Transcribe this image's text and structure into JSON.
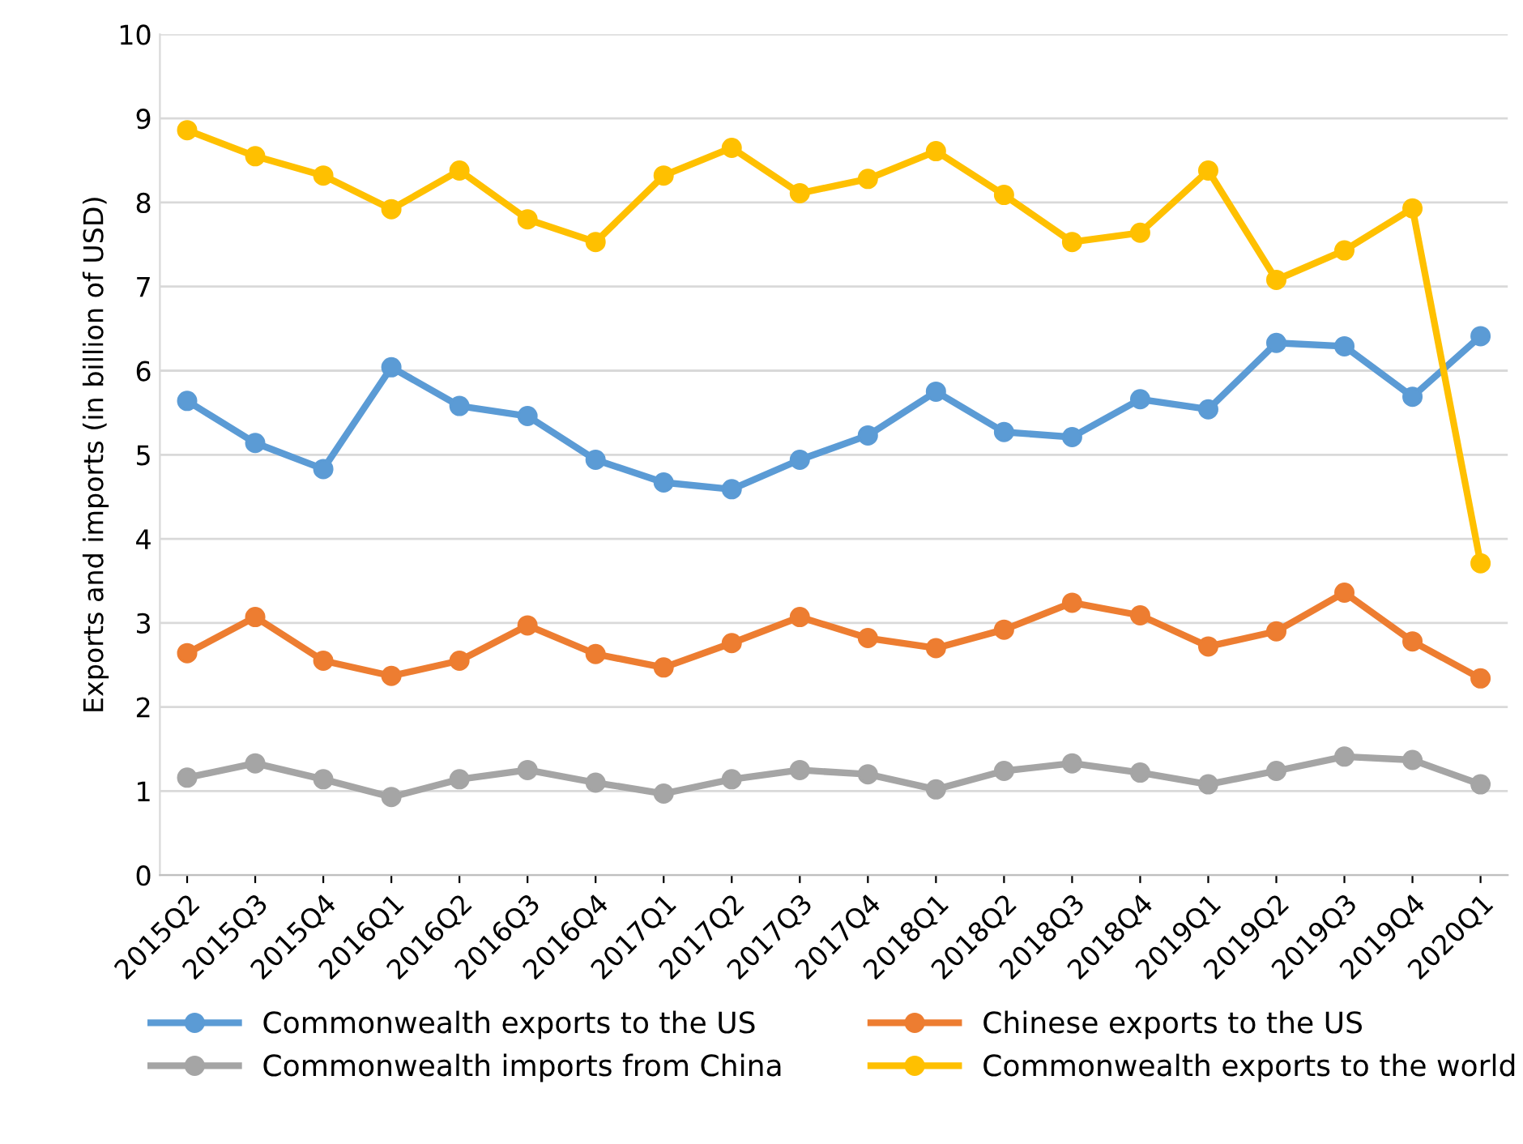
{
  "chart_data": {
    "type": "line",
    "ylabel": "Exports and imports (in billion of USD)",
    "categories": [
      "2015Q2",
      "2015Q3",
      "2015Q4",
      "2016Q1",
      "2016Q2",
      "2016Q3",
      "2016Q4",
      "2017Q1",
      "2017Q2",
      "2017Q3",
      "2017Q4",
      "2018Q1",
      "2018Q2",
      "2018Q3",
      "2018Q4",
      "2019Q1",
      "2019Q2",
      "2019Q3",
      "2019Q4",
      "2020Q1"
    ],
    "series": [
      {
        "name": "Commonwealth exports to the US",
        "color": "#5b9bd5",
        "values": [
          5.64,
          5.14,
          4.83,
          6.04,
          5.58,
          5.46,
          4.94,
          4.67,
          4.59,
          4.94,
          5.23,
          5.75,
          5.27,
          5.21,
          5.66,
          5.54,
          6.33,
          6.29,
          5.69,
          6.41
        ]
      },
      {
        "name": "Chinese exports to the US",
        "color": "#ed7d31",
        "values": [
          2.64,
          3.07,
          2.55,
          2.37,
          2.55,
          2.97,
          2.63,
          2.47,
          2.76,
          3.07,
          2.82,
          2.7,
          2.92,
          3.24,
          3.09,
          2.72,
          2.9,
          3.36,
          2.78,
          2.34
        ]
      },
      {
        "name": "Commonwealth imports from China",
        "color": "#a5a5a5",
        "values": [
          1.16,
          1.33,
          1.14,
          0.93,
          1.14,
          1.25,
          1.1,
          0.97,
          1.14,
          1.25,
          1.2,
          1.02,
          1.24,
          1.33,
          1.22,
          1.08,
          1.24,
          1.41,
          1.37,
          1.08
        ]
      },
      {
        "name": "Commonwealth exports to the world",
        "color": "#ffc000",
        "values": [
          8.86,
          8.55,
          8.32,
          7.92,
          8.38,
          7.8,
          7.53,
          8.32,
          8.65,
          8.11,
          8.28,
          8.61,
          8.09,
          7.53,
          7.64,
          8.38,
          7.08,
          7.43,
          7.93,
          3.71
        ]
      }
    ],
    "ylim": [
      0,
      10
    ],
    "yticks": [
      0,
      1,
      2,
      3,
      4,
      5,
      6,
      7,
      8,
      9,
      10
    ],
    "grid": "y",
    "legend": "bottom",
    "marker": "circle",
    "line_style": "solid"
  }
}
